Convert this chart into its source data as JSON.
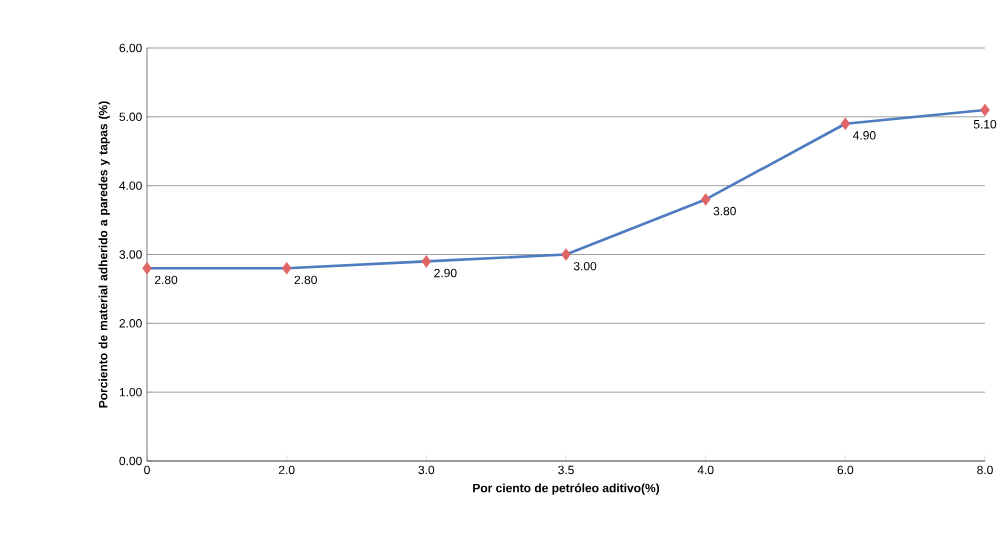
{
  "chart_data": {
    "type": "line",
    "xlabel": "Por ciento de petróleo aditivo(%)",
    "ylabel": "Porciento de material adherido a paredes y tapas (%)",
    "categories": [
      "0",
      "2.0",
      "3.0",
      "3.5",
      "4.0",
      "6.0",
      "8.0"
    ],
    "series": [
      {
        "color": "#4f7cc0",
        "values": [
          2.8,
          2.8,
          2.9,
          3.0,
          3.8,
          4.9,
          5.1
        ],
        "value_labels": [
          "2.80",
          "2.80",
          "2.90",
          "3.00",
          "3.80",
          "4.90",
          "5.10"
        ],
        "colors": [
          "#e06666",
          "#e06666",
          "#e06666",
          "#e06666",
          "#e06666",
          "#e06666",
          "#e06666"
        ]
      }
    ],
    "ylim": [
      0,
      6
    ],
    "yticks": [
      {
        "value": 0,
        "label": "0.00"
      },
      {
        "value": 1,
        "label": "1.00"
      },
      {
        "value": 2,
        "label": "2.00"
      },
      {
        "value": 3,
        "label": "3.00"
      },
      {
        "value": 4,
        "label": "4.00"
      },
      {
        "value": 5,
        "label": "5.00"
      },
      {
        "value": 6,
        "label": "6.00"
      }
    ],
    "grid": "y",
    "marker": "diamond",
    "line_style": "solid"
  }
}
